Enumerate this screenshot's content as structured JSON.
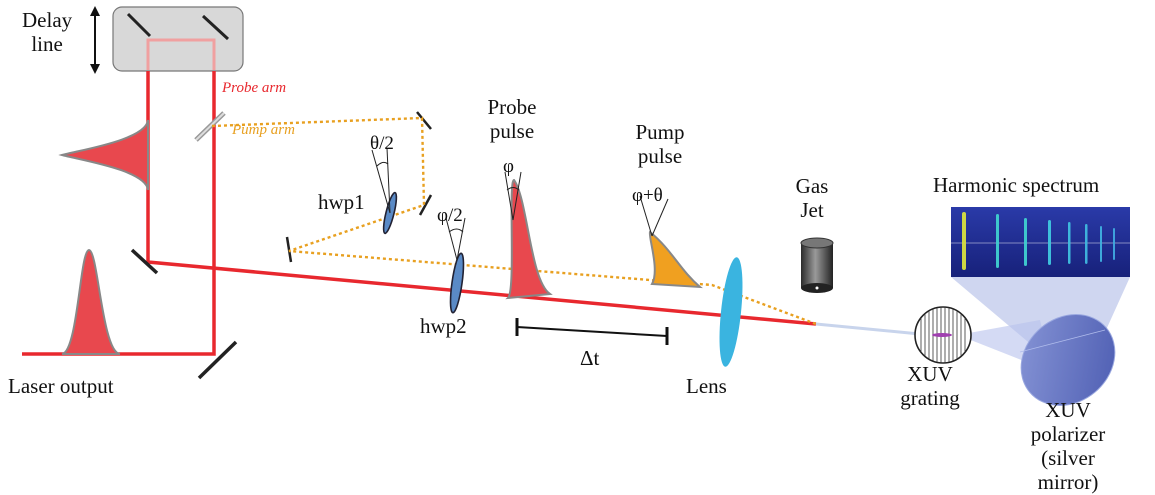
{
  "labels": {
    "delay_line": "Delay\nline",
    "probe_arm": "Probe arm",
    "pump_arm": "Pump arm",
    "laser_output": "Laser output",
    "hwp1": "hwp1",
    "hwp2": "hwp2",
    "theta_half": "θ/2",
    "phi_half": "φ/2",
    "probe_pulse": "Probe\npulse",
    "phi": "φ",
    "pump_pulse": "Pump\npulse",
    "phi_theta": "φ+θ",
    "delta_t": "Δt",
    "lens": "Lens",
    "gas_jet": "Gas\nJet",
    "harmonic_spectrum": "Harmonic spectrum",
    "xuv_grating": "XUV\ngrating",
    "xuv_polarizer": "XUV polarizer\n(silver mirror)"
  },
  "colors": {
    "probe_beam": "#e8282e",
    "probe_pulse_fill": "#e8484e",
    "pump_beam": "#e8a020",
    "pump_pulse_fill": "#f0a020",
    "waveplate": "#5a8ac6",
    "lens": "#3ab4e0",
    "polarizer": "#6a7cc8",
    "spectrum_bg": "#1e2a8a",
    "probe_arm_text": "#e8282e",
    "pump_arm_text": "#e8a020"
  }
}
